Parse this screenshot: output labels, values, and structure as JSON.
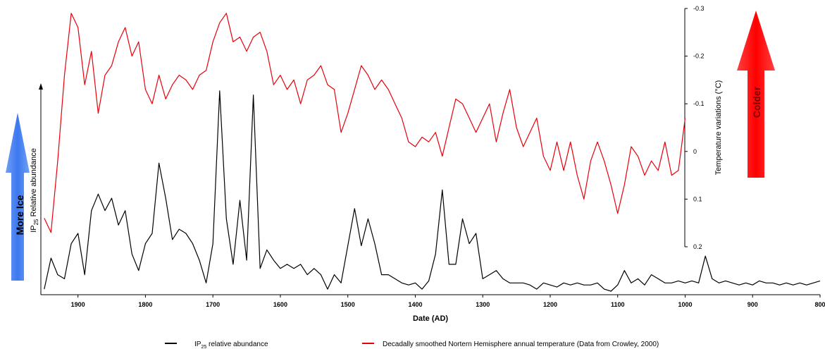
{
  "chart_data": {
    "type": "line",
    "x_label": "Date (AD)",
    "y_label": [
      "IP",
      "25",
      " Relative abundance"
    ],
    "y2_label": "Temperature variations (°C)",
    "annotations": [
      "More Ice",
      "Colder"
    ],
    "xlim": [
      1955,
      800
    ],
    "xticks": [
      1900,
      1800,
      1700,
      1600,
      1500,
      1400,
      1300,
      1200,
      1100,
      1000,
      900,
      800
    ],
    "ylim": [
      0,
      100
    ],
    "y2lim": [
      -0.3,
      0.2
    ],
    "y2ticks": [
      -0.3,
      -0.2,
      -0.1,
      0,
      0.1,
      0.2
    ],
    "x": [
      1950,
      1940,
      1930,
      1920,
      1910,
      1900,
      1890,
      1880,
      1870,
      1860,
      1850,
      1840,
      1830,
      1820,
      1810,
      1800,
      1790,
      1780,
      1770,
      1760,
      1750,
      1740,
      1730,
      1720,
      1710,
      1700,
      1690,
      1680,
      1670,
      1660,
      1650,
      1640,
      1630,
      1620,
      1610,
      1600,
      1590,
      1580,
      1570,
      1560,
      1550,
      1540,
      1530,
      1520,
      1510,
      1500,
      1490,
      1480,
      1470,
      1460,
      1450,
      1440,
      1430,
      1420,
      1410,
      1400,
      1390,
      1380,
      1370,
      1360,
      1350,
      1340,
      1330,
      1320,
      1310,
      1300,
      1290,
      1280,
      1270,
      1260,
      1250,
      1240,
      1230,
      1220,
      1210,
      1200,
      1190,
      1180,
      1170,
      1160,
      1150,
      1140,
      1130,
      1120,
      1110,
      1100,
      1090,
      1080,
      1070,
      1060,
      1050,
      1040,
      1030,
      1020,
      1010,
      1000,
      990,
      980,
      970,
      960,
      950,
      940,
      930,
      920,
      910,
      900,
      890,
      880,
      870,
      860,
      850,
      840,
      830,
      820,
      810,
      800
    ],
    "series": [
      {
        "name": [
          "IP",
          "25",
          " relative abundance"
        ],
        "color": "#000000",
        "axis": "y",
        "values": [
          1,
          16,
          8,
          6,
          23,
          28,
          8,
          39,
          47,
          39,
          45,
          32,
          39,
          18,
          10,
          23,
          28,
          62,
          45,
          25,
          30,
          28,
          23,
          15,
          4,
          23,
          97,
          35,
          13,
          44,
          15,
          95,
          11,
          20,
          15,
          11,
          13,
          11,
          13,
          8,
          11,
          8,
          1,
          8,
          4,
          22,
          40,
          22,
          35,
          23,
          8,
          8,
          6,
          4,
          3,
          4,
          1,
          5,
          18,
          49,
          13,
          13,
          35,
          23,
          28,
          6,
          8,
          10,
          6,
          4,
          4,
          4,
          3,
          1,
          4,
          3,
          2,
          4,
          3,
          4,
          3,
          3,
          4,
          1,
          0,
          3,
          10,
          4,
          6,
          3,
          8,
          6,
          4,
          4,
          5,
          4,
          5,
          4,
          17,
          6,
          4,
          5,
          4,
          3,
          4,
          3,
          5,
          4,
          4,
          3,
          4,
          3,
          4,
          3,
          4,
          5
        ]
      },
      {
        "name": "Decadally smoothed Nortern Hemisphere annual temperature (Data from Crowley, 2000)",
        "color": "#e8000b",
        "axis": "y2",
        "values": [
          0.14,
          0.17,
          0.02,
          -0.16,
          -0.29,
          -0.26,
          -0.14,
          -0.21,
          -0.08,
          -0.16,
          -0.18,
          -0.23,
          -0.26,
          -0.2,
          -0.23,
          -0.13,
          -0.1,
          -0.16,
          -0.11,
          -0.14,
          -0.16,
          -0.15,
          -0.13,
          -0.16,
          -0.17,
          -0.23,
          -0.27,
          -0.29,
          -0.23,
          -0.24,
          -0.21,
          -0.24,
          -0.25,
          -0.21,
          -0.14,
          -0.16,
          -0.13,
          -0.15,
          -0.1,
          -0.15,
          -0.16,
          -0.18,
          -0.14,
          -0.13,
          -0.04,
          -0.08,
          -0.13,
          -0.18,
          -0.16,
          -0.13,
          -0.15,
          -0.13,
          -0.1,
          -0.07,
          -0.02,
          -0.01,
          -0.03,
          -0.02,
          -0.04,
          0.01,
          -0.05,
          -0.11,
          -0.1,
          -0.07,
          -0.04,
          -0.07,
          -0.1,
          -0.02,
          -0.08,
          -0.13,
          -0.05,
          -0.01,
          -0.04,
          -0.07,
          0.01,
          0.04,
          -0.02,
          0.04,
          -0.02,
          0.05,
          0.1,
          0.02,
          -0.02,
          0.02,
          0.07,
          0.13,
          0.07,
          -0.01,
          0.01,
          0.05,
          0.02,
          0.04,
          -0.02,
          0.05,
          0.04,
          -0.07,
          null,
          null,
          null,
          null,
          null,
          null,
          null,
          null,
          null,
          null,
          null,
          null,
          null,
          null,
          null,
          null,
          null,
          null,
          null,
          null
        ]
      }
    ]
  }
}
